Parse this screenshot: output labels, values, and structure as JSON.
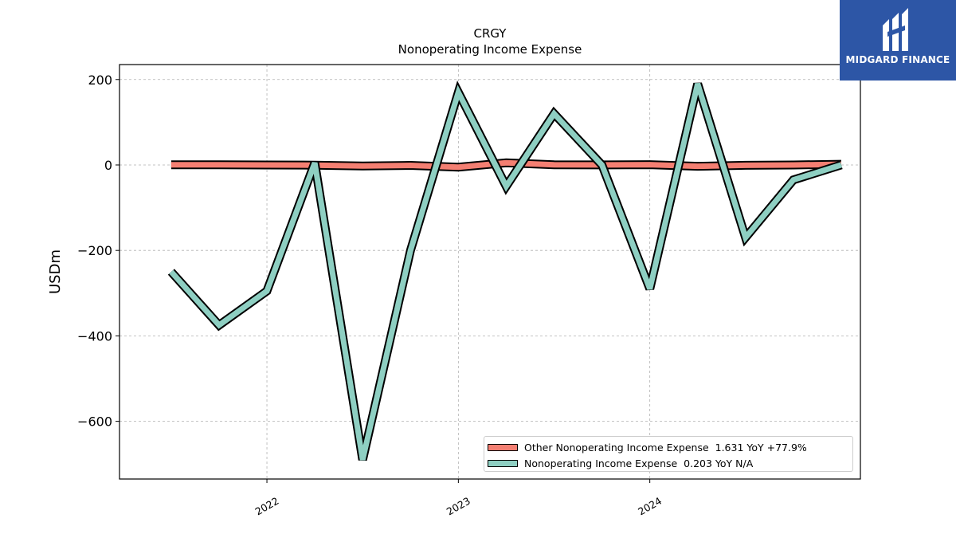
{
  "chart_data": {
    "type": "line",
    "title": "CRGY",
    "subtitle": "Nonoperating Income Expense",
    "ylabel": "USDm",
    "xlabel": "",
    "ylim": [
      -735,
      235
    ],
    "xlim": [
      2021.23,
      2025.1
    ],
    "yticks": [
      200,
      0,
      -200,
      -400,
      -600
    ],
    "ytick_labels": [
      "200",
      "0",
      "−200",
      "−400",
      "−600"
    ],
    "xticks": [
      2022,
      2023,
      2024
    ],
    "xtick_labels": [
      "2022",
      "2023",
      "2024"
    ],
    "grid": true,
    "legend_position": "lower-right",
    "x": [
      2021.5,
      2021.75,
      2022.0,
      2022.25,
      2022.5,
      2022.75,
      2023.0,
      2023.25,
      2023.5,
      2023.75,
      2024.0,
      2024.25,
      2024.5,
      2024.75,
      2025.0
    ],
    "series": [
      {
        "name": "Other Nonoperating Income Expense",
        "legend_label": "Other Nonoperating Income Expense  1.631 YoY +77.9%",
        "color": "#f47f72",
        "values": [
          0.5,
          0.3,
          0.0,
          -0.4,
          -2.5,
          -1.0,
          -5.0,
          5.0,
          0.4,
          0.1,
          0.8,
          -3.0,
          -0.8,
          0.0,
          1.631
        ]
      },
      {
        "name": "Nonoperating Income Expense",
        "legend_label": "Nonoperating Income Expense  0.203 YoY N/A",
        "color": "#8ecfc2",
        "values": [
          -250,
          -375,
          -295,
          5,
          -690,
          -200,
          170,
          -50,
          120,
          0,
          -290,
          190,
          -170,
          -35,
          0.203
        ]
      }
    ]
  },
  "logo": {
    "text": "MIDGARD FINANCE",
    "color": "#2d56a6"
  }
}
